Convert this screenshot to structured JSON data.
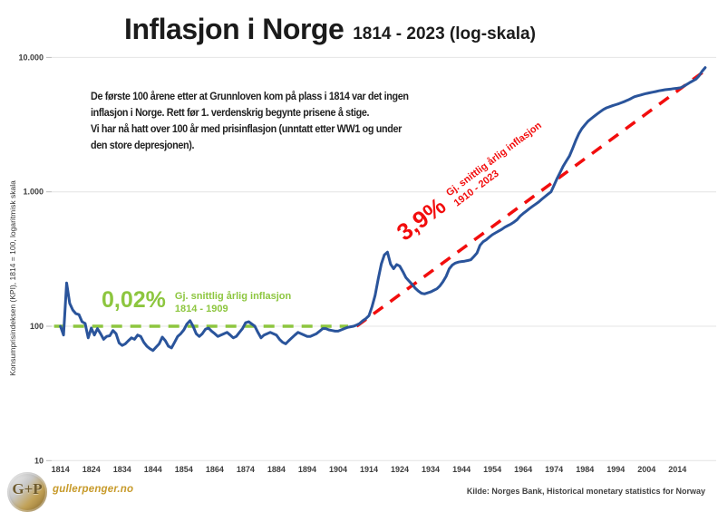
{
  "title": {
    "main": "Inflasjon i Norge",
    "sub": "1814 - 2023 (log-skala)"
  },
  "annotation": {
    "lines": [
      "De første 100 årene etter at Grunnloven kom på plass i 1814 var det ingen",
      "inflasjon i Norge. Rett før 1. verdenskrig begynte prisene å stige.",
      "Vi har nå hatt over 100 år med prisinflasjon (unntatt etter WW1 og under",
      "den store depresjonen)."
    ]
  },
  "labels": {
    "green": {
      "pct": "0,02%",
      "line1": "Gj. snittlig årlig inflasjon",
      "line2": "1814 - 1909"
    },
    "red": {
      "pct": "3,9%",
      "line1": "Gj. snittlig årlig inflasjon",
      "line2": "1910 - 2023"
    }
  },
  "y_axis": {
    "title": "Konsumprisindeksen (KPI), 1814 = 100, logaritmisk skala",
    "ticks": [
      "10.000",
      "1.000",
      "100",
      "10"
    ],
    "tick_values": [
      10000,
      1000,
      100,
      10
    ]
  },
  "x_axis": {
    "ticks": [
      1814,
      1824,
      1834,
      1844,
      1854,
      1864,
      1874,
      1884,
      1894,
      1904,
      1914,
      1924,
      1934,
      1944,
      1954,
      1964,
      1974,
      1984,
      1994,
      2004,
      2014
    ]
  },
  "source": "Kilde: Norges Bank, Historical monetary statistics for Norway",
  "branding": {
    "site": "gullerpenger.no",
    "logo_text": "G+P"
  },
  "colors": {
    "line_blue": "#2a549b",
    "green": "#8dc63f",
    "red": "#f20d0d",
    "grid": "#e4e4e4",
    "tick": "#bdbdbd",
    "gold": "#c79a2a"
  },
  "chart_data": {
    "type": "line",
    "title": "Inflasjon i Norge 1814 - 2023 (log-skala)",
    "xlabel": "",
    "ylabel": "Konsumprisindeksen (KPI), 1814 = 100, logaritmisk skala",
    "y_scale": "log",
    "ylim": [
      10,
      10000
    ],
    "xlim": [
      1814,
      2023
    ],
    "grid": "horizontal",
    "legend_position": "none",
    "series": [
      {
        "name": "Konsumprisindeksen (KPI), 1814 = 100",
        "style": "solid",
        "start_year": 1814,
        "values": [
          100,
          86,
          210,
          148,
          132,
          124,
          122,
          108,
          105,
          82,
          97,
          86,
          96,
          88,
          80,
          84,
          85,
          93,
          88,
          75,
          72,
          74,
          78,
          82,
          80,
          86,
          84,
          76,
          71,
          68,
          66,
          70,
          74,
          83,
          78,
          71,
          69,
          76,
          84,
          88,
          94,
          104,
          110,
          100,
          88,
          84,
          88,
          95,
          97,
          92,
          88,
          84,
          86,
          88,
          90,
          86,
          82,
          84,
          90,
          96,
          106,
          108,
          104,
          100,
          90,
          82,
          86,
          88,
          90,
          88,
          86,
          80,
          76,
          74,
          78,
          82,
          86,
          90,
          88,
          86,
          84,
          84,
          86,
          88,
          92,
          96,
          96,
          94,
          93,
          92,
          92,
          94,
          96,
          98,
          99,
          100,
          102,
          105,
          110,
          114,
          120,
          140,
          170,
          225,
          290,
          340,
          356,
          290,
          268,
          288,
          280,
          255,
          230,
          217,
          205,
          192,
          183,
          176,
          174,
          177,
          180,
          185,
          190,
          200,
          215,
          235,
          267,
          285,
          295,
          300,
          303,
          305,
          308,
          312,
          330,
          350,
          400,
          425,
          440,
          460,
          480,
          495,
          510,
          525,
          545,
          560,
          575,
          595,
          620,
          660,
          690,
          720,
          750,
          780,
          810,
          840,
          880,
          920,
          960,
          1000,
          1120,
          1260,
          1400,
          1560,
          1700,
          1850,
          2100,
          2400,
          2700,
          2950,
          3150,
          3350,
          3500,
          3650,
          3800,
          3950,
          4100,
          4220,
          4300,
          4380,
          4450,
          4530,
          4620,
          4720,
          4830,
          4960,
          5100,
          5180,
          5250,
          5330,
          5400,
          5460,
          5520,
          5580,
          5650,
          5700,
          5750,
          5790,
          5830,
          5870,
          5900,
          5950,
          6100,
          6300,
          6500,
          6700,
          6900,
          7300,
          7900,
          8400
        ]
      },
      {
        "name": "Gj. snittlig årlig inflasjon 1814 - 1909 (0,02%)",
        "style": "dashed",
        "points": [
          [
            1814,
            100
          ],
          [
            1909,
            100
          ]
        ]
      },
      {
        "name": "Gj. snittlig årlig inflasjon 1910 - 2023 (3,9%)",
        "style": "dashed",
        "points": [
          [
            1910,
            100
          ],
          [
            2023,
            8000
          ]
        ]
      }
    ]
  }
}
